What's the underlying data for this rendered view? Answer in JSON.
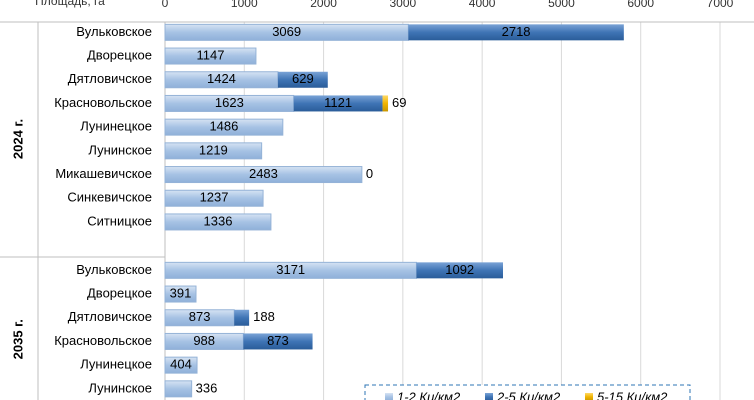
{
  "chart_data": {
    "type": "stacked-bar-horizontal",
    "x_label": "Площадь, га",
    "categories": [
      "Вульковское",
      "Дворецкое",
      "Дятловичское",
      "Красновольское",
      "Лунинецкое",
      "Лунинское",
      "Микашевичское",
      "Синкевичское",
      "Ситницкое",
      null,
      "Вульковское",
      "Дворецкое",
      "Дятловичское",
      "Красновольское",
      "Лунинецкое",
      "Лунинское"
    ],
    "groups": [
      {
        "label": "2024 г.",
        "size": 10
      },
      {
        "label": "2035 г.",
        "size": 6
      }
    ],
    "series": [
      {
        "name": "1-2 Ки/км2",
        "color": "#a6c2e4",
        "values": [
          3069,
          1147,
          1424,
          1623,
          1486,
          1219,
          2483,
          1237,
          1336,
          null,
          3171,
          391,
          873,
          988,
          404,
          336
        ]
      },
      {
        "name": "2-5 Ки/км2",
        "color": "#3f74b5",
        "values": [
          2718,
          null,
          629,
          1121,
          null,
          null,
          0,
          null,
          null,
          null,
          1092,
          null,
          188,
          873,
          null,
          null
        ]
      },
      {
        "name": "5-15 Ки/км2",
        "color": "#f0b400",
        "values": [
          null,
          null,
          null,
          69,
          null,
          null,
          null,
          null,
          null,
          null,
          null,
          null,
          null,
          null,
          null,
          null
        ]
      }
    ],
    "xlim": [
      0,
      7000
    ],
    "xticks": [
      0,
      1000,
      2000,
      3000,
      4000,
      5000,
      6000,
      7000
    ],
    "grid": true
  }
}
